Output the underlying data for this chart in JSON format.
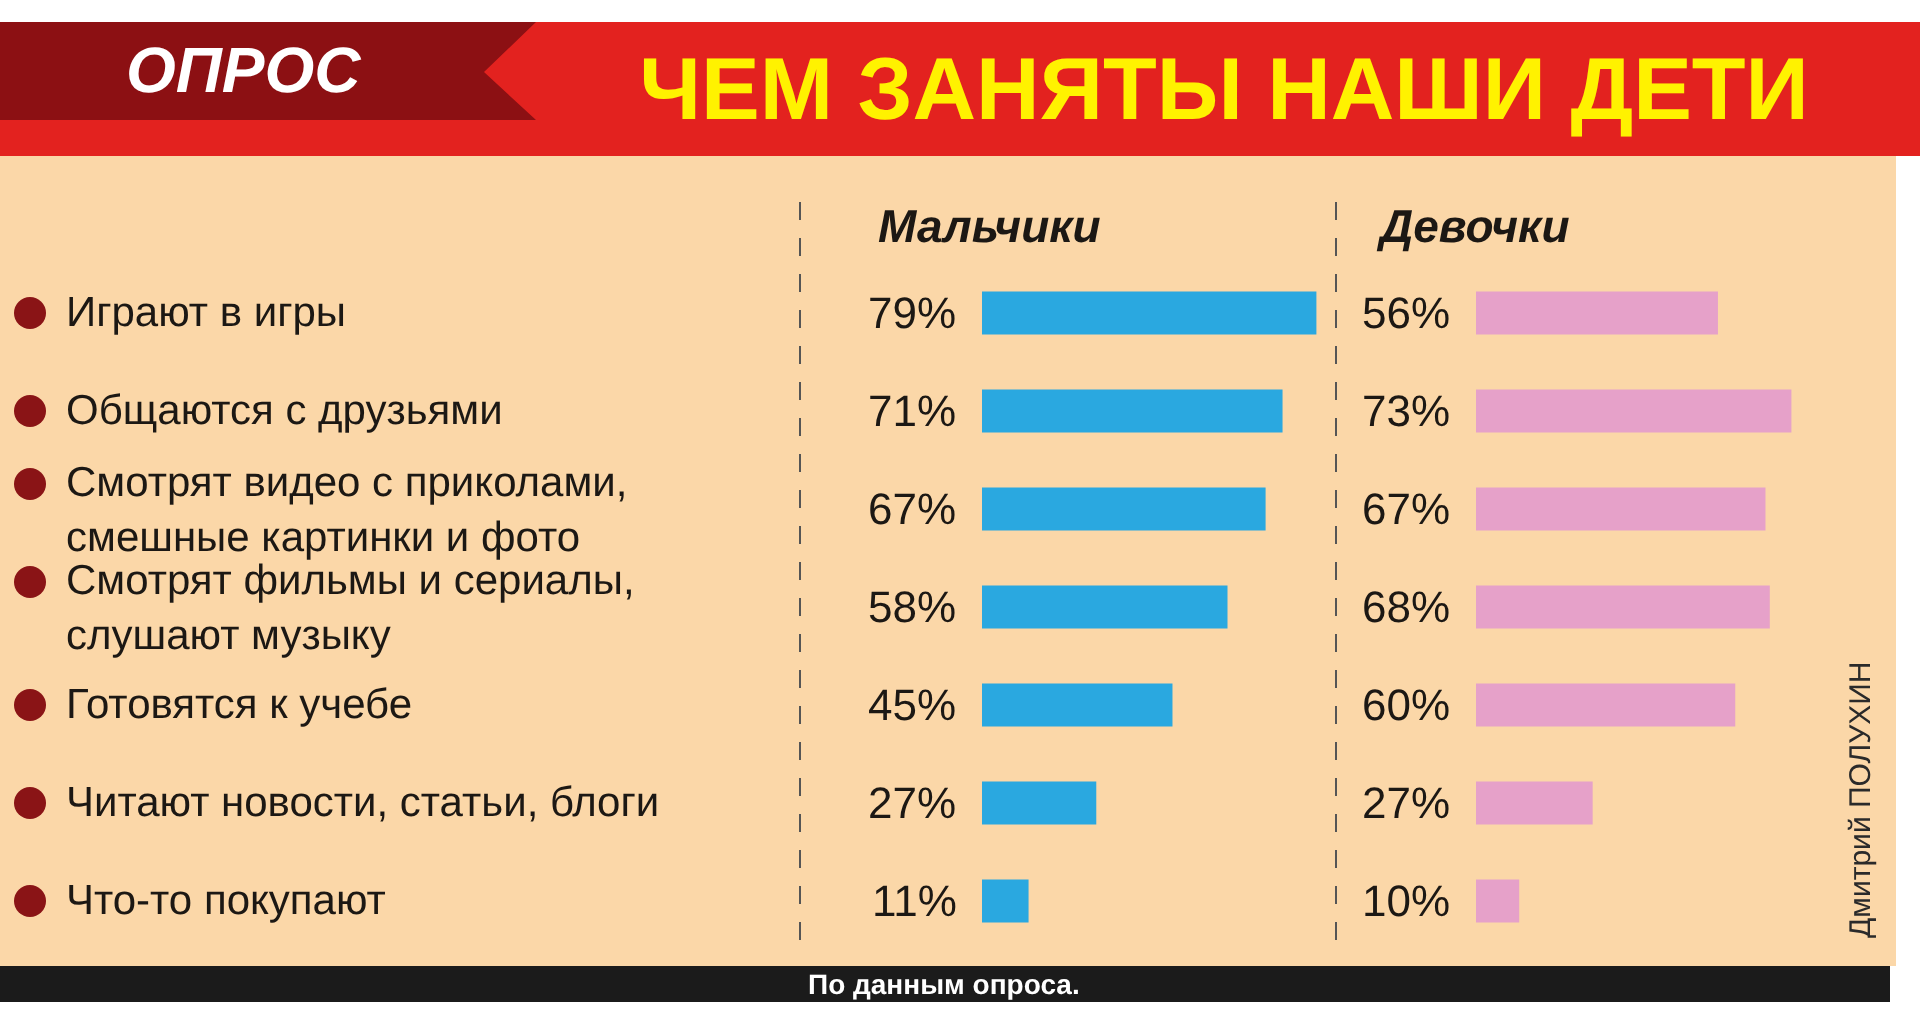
{
  "chart_data": [
    {
      "type": "bar",
      "orientation": "horizontal",
      "title": "ЧЕМ ЗАНЯТЫ НАШИ ДЕТИ",
      "subtitle": "ОПРОС",
      "categories": [
        "Играют в игры",
        "Общаются с друзьями",
        "Смотрят видео с приколами,\nсмешные картинки и фото",
        "Смотрят фильмы и сериалы,\nслушают музыку",
        "Готовятся к учебе",
        "Читают новости, статьи, блоги",
        "Что-то покупают"
      ],
      "series": [
        {
          "name": "Мальчики",
          "color": "#2aa8e0",
          "values": [
            79,
            71,
            67,
            58,
            45,
            27,
            11
          ],
          "value_labels": [
            "79%",
            "71%",
            "67%",
            "58%",
            "45%",
            "27%",
            "11%"
          ]
        }
      ],
      "tick_labels": "y",
      "annotations": [
        "По данным опроса.",
        "Дмитрий ПОЛУХИН"
      ]
    },
    {
      "type": "bar",
      "orientation": "horizontal",
      "categories": [
        "Играют в игры",
        "Общаются с друзьями",
        "Смотрят видео с приколами,\nсмешные картинки и фото",
        "Смотрят фильмы и сериалы,\nслушают музыку",
        "Готовятся к учебе",
        "Читают новости, статьи, блоги",
        "Что-то покупают"
      ],
      "series": [
        {
          "name": "Девочки",
          "color": "#e6a1c9",
          "values": [
            56,
            73,
            67,
            68,
            60,
            27,
            10
          ],
          "value_labels": [
            "56%",
            "73%",
            "67%",
            "68%",
            "60%",
            "27%",
            "10%"
          ]
        }
      ],
      "tick_labels": false
    }
  ]
}
